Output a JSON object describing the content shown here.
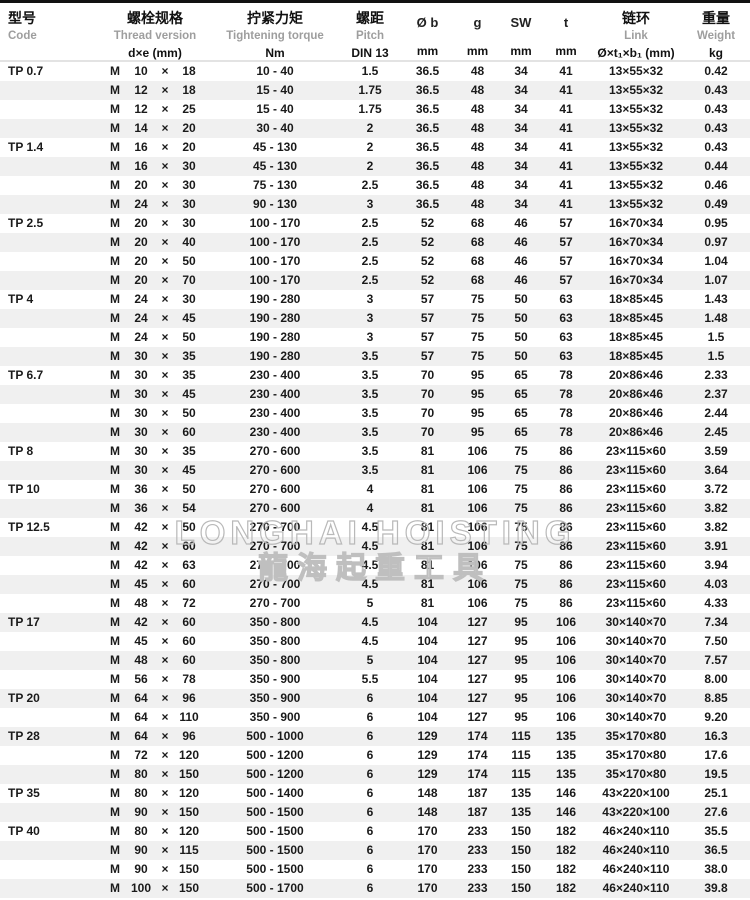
{
  "table": {
    "symbols": {
      "thread_prefix": "M",
      "times": "×"
    },
    "header": {
      "code": {
        "zh": "型号",
        "en": "Code",
        "unit": ""
      },
      "thread": {
        "zh": "螺栓规格",
        "en": "Thread version",
        "unit": "d×e (mm)"
      },
      "torque": {
        "zh": "拧紧力矩",
        "en": "Tightening torque",
        "unit": "Nm"
      },
      "pitch": {
        "zh": "螺距",
        "en": "Pitch",
        "unit": "DIN 13"
      },
      "ob": {
        "label": "Ø b",
        "unit": "mm"
      },
      "g": {
        "label": "g",
        "unit": "mm"
      },
      "sw": {
        "label": "SW",
        "unit": "mm"
      },
      "t": {
        "label": "t",
        "unit": "mm"
      },
      "link": {
        "zh": "链环",
        "en": "Link",
        "unit": "Ø×t₁×b₁ (mm)"
      },
      "weight": {
        "zh": "重量",
        "en": "Weight",
        "unit": "kg"
      }
    },
    "rows": [
      {
        "code": "TP 0.7",
        "d": "10",
        "e": "18",
        "torque": "10 - 40",
        "pitch": "1.5",
        "ob": "36.5",
        "g": "48",
        "sw": "34",
        "t": "41",
        "link": "13×55×32",
        "weight": "0.42"
      },
      {
        "code": "",
        "d": "12",
        "e": "18",
        "torque": "15 - 40",
        "pitch": "1.75",
        "ob": "36.5",
        "g": "48",
        "sw": "34",
        "t": "41",
        "link": "13×55×32",
        "weight": "0.43"
      },
      {
        "code": "",
        "d": "12",
        "e": "25",
        "torque": "15 - 40",
        "pitch": "1.75",
        "ob": "36.5",
        "g": "48",
        "sw": "34",
        "t": "41",
        "link": "13×55×32",
        "weight": "0.43"
      },
      {
        "code": "",
        "d": "14",
        "e": "20",
        "torque": "30 - 40",
        "pitch": "2",
        "ob": "36.5",
        "g": "48",
        "sw": "34",
        "t": "41",
        "link": "13×55×32",
        "weight": "0.43"
      },
      {
        "code": "TP 1.4",
        "d": "16",
        "e": "20",
        "torque": "45 - 130",
        "pitch": "2",
        "ob": "36.5",
        "g": "48",
        "sw": "34",
        "t": "41",
        "link": "13×55×32",
        "weight": "0.43"
      },
      {
        "code": "",
        "d": "16",
        "e": "30",
        "torque": "45 - 130",
        "pitch": "2",
        "ob": "36.5",
        "g": "48",
        "sw": "34",
        "t": "41",
        "link": "13×55×32",
        "weight": "0.44"
      },
      {
        "code": "",
        "d": "20",
        "e": "30",
        "torque": "75 - 130",
        "pitch": "2.5",
        "ob": "36.5",
        "g": "48",
        "sw": "34",
        "t": "41",
        "link": "13×55×32",
        "weight": "0.46"
      },
      {
        "code": "",
        "d": "24",
        "e": "30",
        "torque": "90 - 130",
        "pitch": "3",
        "ob": "36.5",
        "g": "48",
        "sw": "34",
        "t": "41",
        "link": "13×55×32",
        "weight": "0.49"
      },
      {
        "code": "TP 2.5",
        "d": "20",
        "e": "30",
        "torque": "100 - 170",
        "pitch": "2.5",
        "ob": "52",
        "g": "68",
        "sw": "46",
        "t": "57",
        "link": "16×70×34",
        "weight": "0.95"
      },
      {
        "code": "",
        "d": "20",
        "e": "40",
        "torque": "100 - 170",
        "pitch": "2.5",
        "ob": "52",
        "g": "68",
        "sw": "46",
        "t": "57",
        "link": "16×70×34",
        "weight": "0.97"
      },
      {
        "code": "",
        "d": "20",
        "e": "50",
        "torque": "100 - 170",
        "pitch": "2.5",
        "ob": "52",
        "g": "68",
        "sw": "46",
        "t": "57",
        "link": "16×70×34",
        "weight": "1.04"
      },
      {
        "code": "",
        "d": "20",
        "e": "70",
        "torque": "100 - 170",
        "pitch": "2.5",
        "ob": "52",
        "g": "68",
        "sw": "46",
        "t": "57",
        "link": "16×70×34",
        "weight": "1.07"
      },
      {
        "code": "TP 4",
        "d": "24",
        "e": "30",
        "torque": "190 - 280",
        "pitch": "3",
        "ob": "57",
        "g": "75",
        "sw": "50",
        "t": "63",
        "link": "18×85×45",
        "weight": "1.43"
      },
      {
        "code": "",
        "d": "24",
        "e": "45",
        "torque": "190 - 280",
        "pitch": "3",
        "ob": "57",
        "g": "75",
        "sw": "50",
        "t": "63",
        "link": "18×85×45",
        "weight": "1.48"
      },
      {
        "code": "",
        "d": "24",
        "e": "50",
        "torque": "190 - 280",
        "pitch": "3",
        "ob": "57",
        "g": "75",
        "sw": "50",
        "t": "63",
        "link": "18×85×45",
        "weight": "1.5"
      },
      {
        "code": "",
        "d": "30",
        "e": "35",
        "torque": "190 - 280",
        "pitch": "3.5",
        "ob": "57",
        "g": "75",
        "sw": "50",
        "t": "63",
        "link": "18×85×45",
        "weight": "1.5"
      },
      {
        "code": "TP 6.7",
        "d": "30",
        "e": "35",
        "torque": "230 - 400",
        "pitch": "3.5",
        "ob": "70",
        "g": "95",
        "sw": "65",
        "t": "78",
        "link": "20×86×46",
        "weight": "2.33"
      },
      {
        "code": "",
        "d": "30",
        "e": "45",
        "torque": "230 - 400",
        "pitch": "3.5",
        "ob": "70",
        "g": "95",
        "sw": "65",
        "t": "78",
        "link": "20×86×46",
        "weight": "2.37"
      },
      {
        "code": "",
        "d": "30",
        "e": "50",
        "torque": "230 - 400",
        "pitch": "3.5",
        "ob": "70",
        "g": "95",
        "sw": "65",
        "t": "78",
        "link": "20×86×46",
        "weight": "2.44"
      },
      {
        "code": "",
        "d": "30",
        "e": "60",
        "torque": "230 - 400",
        "pitch": "3.5",
        "ob": "70",
        "g": "95",
        "sw": "65",
        "t": "78",
        "link": "20×86×46",
        "weight": "2.45"
      },
      {
        "code": "TP 8",
        "d": "30",
        "e": "35",
        "torque": "270 - 600",
        "pitch": "3.5",
        "ob": "81",
        "g": "106",
        "sw": "75",
        "t": "86",
        "link": "23×115×60",
        "weight": "3.59"
      },
      {
        "code": "",
        "d": "30",
        "e": "45",
        "torque": "270 - 600",
        "pitch": "3.5",
        "ob": "81",
        "g": "106",
        "sw": "75",
        "t": "86",
        "link": "23×115×60",
        "weight": "3.64"
      },
      {
        "code": "TP 10",
        "d": "36",
        "e": "50",
        "torque": "270 - 600",
        "pitch": "4",
        "ob": "81",
        "g": "106",
        "sw": "75",
        "t": "86",
        "link": "23×115×60",
        "weight": "3.72"
      },
      {
        "code": "",
        "d": "36",
        "e": "54",
        "torque": "270 - 600",
        "pitch": "4",
        "ob": "81",
        "g": "106",
        "sw": "75",
        "t": "86",
        "link": "23×115×60",
        "weight": "3.82"
      },
      {
        "code": "TP 12.5",
        "d": "42",
        "e": "50",
        "torque": "270 - 700",
        "pitch": "4.5",
        "ob": "81",
        "g": "106",
        "sw": "75",
        "t": "86",
        "link": "23×115×60",
        "weight": "3.82"
      },
      {
        "code": "",
        "d": "42",
        "e": "60",
        "torque": "270 - 700",
        "pitch": "4.5",
        "ob": "81",
        "g": "106",
        "sw": "75",
        "t": "86",
        "link": "23×115×60",
        "weight": "3.91"
      },
      {
        "code": "",
        "d": "42",
        "e": "63",
        "torque": "270 - 700",
        "pitch": "4.5",
        "ob": "81",
        "g": "106",
        "sw": "75",
        "t": "86",
        "link": "23×115×60",
        "weight": "3.94"
      },
      {
        "code": "",
        "d": "45",
        "e": "60",
        "torque": "270 - 700",
        "pitch": "4.5",
        "ob": "81",
        "g": "106",
        "sw": "75",
        "t": "86",
        "link": "23×115×60",
        "weight": "4.03"
      },
      {
        "code": "",
        "d": "48",
        "e": "72",
        "torque": "270 - 700",
        "pitch": "5",
        "ob": "81",
        "g": "106",
        "sw": "75",
        "t": "86",
        "link": "23×115×60",
        "weight": "4.33"
      },
      {
        "code": "TP 17",
        "d": "42",
        "e": "60",
        "torque": "350 - 800",
        "pitch": "4.5",
        "ob": "104",
        "g": "127",
        "sw": "95",
        "t": "106",
        "link": "30×140×70",
        "weight": "7.34"
      },
      {
        "code": "",
        "d": "45",
        "e": "60",
        "torque": "350 - 800",
        "pitch": "4.5",
        "ob": "104",
        "g": "127",
        "sw": "95",
        "t": "106",
        "link": "30×140×70",
        "weight": "7.50"
      },
      {
        "code": "",
        "d": "48",
        "e": "60",
        "torque": "350 - 800",
        "pitch": "5",
        "ob": "104",
        "g": "127",
        "sw": "95",
        "t": "106",
        "link": "30×140×70",
        "weight": "7.57"
      },
      {
        "code": "",
        "d": "56",
        "e": "78",
        "torque": "350 - 900",
        "pitch": "5.5",
        "ob": "104",
        "g": "127",
        "sw": "95",
        "t": "106",
        "link": "30×140×70",
        "weight": "8.00"
      },
      {
        "code": "TP 20",
        "d": "64",
        "e": "96",
        "torque": "350 - 900",
        "pitch": "6",
        "ob": "104",
        "g": "127",
        "sw": "95",
        "t": "106",
        "link": "30×140×70",
        "weight": "8.85"
      },
      {
        "code": "",
        "d": "64",
        "e": "110",
        "torque": "350 - 900",
        "pitch": "6",
        "ob": "104",
        "g": "127",
        "sw": "95",
        "t": "106",
        "link": "30×140×70",
        "weight": "9.20"
      },
      {
        "code": "TP 28",
        "d": "64",
        "e": "96",
        "torque": "500 - 1000",
        "pitch": "6",
        "ob": "129",
        "g": "174",
        "sw": "115",
        "t": "135",
        "link": "35×170×80",
        "weight": "16.3"
      },
      {
        "code": "",
        "d": "72",
        "e": "120",
        "torque": "500 - 1200",
        "pitch": "6",
        "ob": "129",
        "g": "174",
        "sw": "115",
        "t": "135",
        "link": "35×170×80",
        "weight": "17.6"
      },
      {
        "code": "",
        "d": "80",
        "e": "150",
        "torque": "500 - 1200",
        "pitch": "6",
        "ob": "129",
        "g": "174",
        "sw": "115",
        "t": "135",
        "link": "35×170×80",
        "weight": "19.5"
      },
      {
        "code": "TP 35",
        "d": "80",
        "e": "120",
        "torque": "500 - 1400",
        "pitch": "6",
        "ob": "148",
        "g": "187",
        "sw": "135",
        "t": "146",
        "link": "43×220×100",
        "weight": "25.1"
      },
      {
        "code": "",
        "d": "90",
        "e": "150",
        "torque": "500 - 1500",
        "pitch": "6",
        "ob": "148",
        "g": "187",
        "sw": "135",
        "t": "146",
        "link": "43×220×100",
        "weight": "27.6"
      },
      {
        "code": "TP 40",
        "d": "80",
        "e": "120",
        "torque": "500 - 1500",
        "pitch": "6",
        "ob": "170",
        "g": "233",
        "sw": "150",
        "t": "182",
        "link": "46×240×110",
        "weight": "35.5"
      },
      {
        "code": "",
        "d": "90",
        "e": "115",
        "torque": "500 - 1500",
        "pitch": "6",
        "ob": "170",
        "g": "233",
        "sw": "150",
        "t": "182",
        "link": "46×240×110",
        "weight": "36.5"
      },
      {
        "code": "",
        "d": "90",
        "e": "150",
        "torque": "500 - 1500",
        "pitch": "6",
        "ob": "170",
        "g": "233",
        "sw": "150",
        "t": "182",
        "link": "46×240×110",
        "weight": "38.0"
      },
      {
        "code": "",
        "d": "100",
        "e": "150",
        "torque": "500 - 1700",
        "pitch": "6",
        "ob": "170",
        "g": "233",
        "sw": "150",
        "t": "182",
        "link": "46×240×110",
        "weight": "39.8"
      }
    ]
  },
  "watermark": {
    "line1": "LONGHAI HOISTING",
    "line2": "龍海起重工具"
  },
  "colors": {
    "stripe": "#f0f0f0",
    "header_sub_text": "#9e9e9e",
    "text": "#1a1a1a",
    "top_border": "#111111"
  }
}
